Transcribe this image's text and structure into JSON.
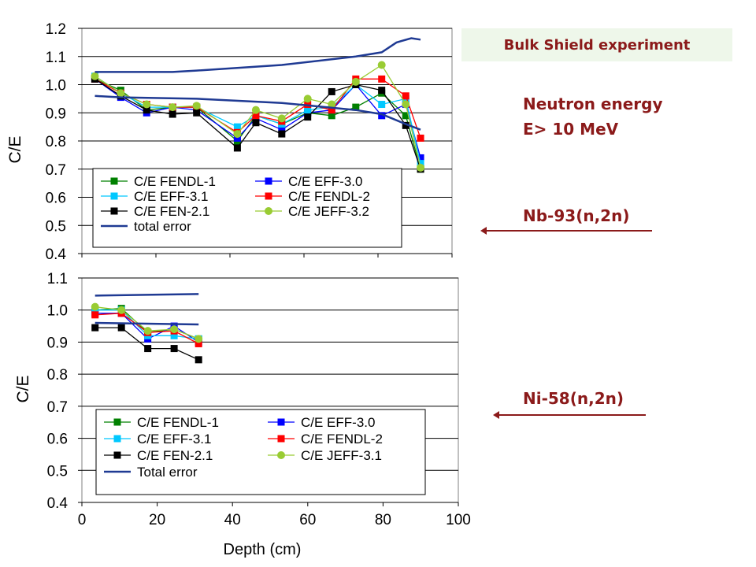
{
  "banner": "Bulk Shield experiment",
  "energy_note": [
    "Neutron energy",
    "E> 10 MeV"
  ],
  "reaction_labels": [
    "Nb-93(n,2n)",
    "Ni-58(n,2n)"
  ],
  "colors": {
    "annotation": "#8b1a1a",
    "banner_bg": "#eef7ea"
  },
  "chart_data": [
    {
      "type": "line",
      "title": "",
      "xlabel": "",
      "ylabel": "C/E",
      "xlim": [
        0,
        100
      ],
      "ylim": [
        0.4,
        1.2
      ],
      "yticks": [
        "0.4",
        "0.5",
        "0.6",
        "0.7",
        "0.8",
        "0.9",
        "1.0",
        "1.1",
        "1.2"
      ],
      "grid": "horizontal",
      "legend": "bottom-left",
      "legend_columns": 2,
      "series": [
        {
          "name": "C/E FENDL-1",
          "color": "#008000",
          "marker": "square",
          "x": [
            3.5,
            10.5,
            17.5,
            24.5,
            31,
            42,
            47,
            54,
            61,
            67.5,
            74,
            81,
            87.5,
            91.5
          ],
          "y": [
            1.02,
            0.98,
            0.91,
            0.92,
            0.92,
            0.8,
            0.89,
            0.86,
            0.9,
            0.89,
            0.92,
            0.97,
            0.89,
            0.7
          ]
        },
        {
          "name": "C/E EFF-3.0",
          "color": "#0000ff",
          "marker": "square",
          "x": [
            3.5,
            10.5,
            17.5,
            24.5,
            31,
            42,
            47,
            54,
            61,
            67.5,
            74,
            81,
            87.5,
            91.5
          ],
          "y": [
            1.02,
            0.955,
            0.9,
            0.92,
            0.91,
            0.81,
            0.88,
            0.84,
            0.9,
            0.91,
            1.0,
            0.89,
            0.93,
            0.74
          ]
        },
        {
          "name": "C/E EFF-3.1",
          "color": "#00c8ff",
          "marker": "square",
          "x": [
            3.5,
            10.5,
            17.5,
            24.5,
            31,
            42,
            47,
            54,
            61,
            67.5,
            74,
            81,
            87.5,
            91.5
          ],
          "y": [
            1.03,
            0.97,
            0.92,
            0.92,
            0.92,
            0.85,
            0.89,
            0.86,
            0.91,
            0.92,
            1.0,
            0.93,
            0.95,
            0.72
          ]
        },
        {
          "name": "C/E FENDL-2",
          "color": "#ff0000",
          "marker": "square",
          "x": [
            3.5,
            10.5,
            17.5,
            24.5,
            31,
            42,
            47,
            54,
            61,
            67.5,
            74,
            81,
            87.5,
            91.5
          ],
          "y": [
            1.02,
            0.97,
            0.93,
            0.92,
            0.92,
            0.83,
            0.89,
            0.87,
            0.93,
            0.91,
            1.02,
            1.02,
            0.96,
            0.81
          ]
        },
        {
          "name": "C/E FEN-2.1",
          "color": "#000000",
          "marker": "square",
          "x": [
            3.5,
            10.5,
            17.5,
            24.5,
            31,
            42,
            47,
            54,
            61,
            67.5,
            74,
            81,
            87.5,
            91.5
          ],
          "y": [
            1.02,
            0.96,
            0.91,
            0.895,
            0.9,
            0.775,
            0.865,
            0.825,
            0.885,
            0.975,
            1.0,
            0.98,
            0.855,
            0.7
          ]
        },
        {
          "name": "C/E JEFF-3.2",
          "color": "#99cc33",
          "marker": "circle",
          "x": [
            3.5,
            10.5,
            17.5,
            24.5,
            31,
            42,
            47,
            54,
            61,
            67.5,
            74,
            81,
            87.5,
            91.5
          ],
          "y": [
            1.03,
            0.97,
            0.93,
            0.92,
            0.925,
            0.825,
            0.91,
            0.88,
            0.95,
            0.93,
            1.01,
            1.07,
            0.93,
            0.705
          ]
        },
        {
          "name": "total error",
          "color": "#1f3a93",
          "marker": "none",
          "width": 2.5,
          "x": [
            3.5,
            10.5,
            24.5,
            31,
            54,
            74,
            81,
            85,
            89,
            91.5
          ],
          "y": [
            1.045,
            1.045,
            1.045,
            1.05,
            1.07,
            1.1,
            1.115,
            1.15,
            1.165,
            1.16
          ]
        },
        {
          "name": "",
          "color": "#1f3a93",
          "marker": "none",
          "width": 2.5,
          "x": [
            3.5,
            10.5,
            31,
            54,
            74,
            81,
            87.5,
            91.5
          ],
          "y": [
            0.96,
            0.955,
            0.95,
            0.935,
            0.91,
            0.895,
            0.86,
            0.84
          ]
        }
      ]
    },
    {
      "type": "line",
      "title": "",
      "xlabel": "Depth (cm)",
      "ylabel": "C/E",
      "xlim": [
        0,
        100
      ],
      "ylim": [
        0.4,
        1.1
      ],
      "xticks": [
        "0",
        "20",
        "40",
        "60",
        "80",
        "100"
      ],
      "yticks": [
        "0.4",
        "0.5",
        "0.6",
        "0.7",
        "0.8",
        "0.9",
        "1.0",
        "1.1"
      ],
      "grid": "horizontal",
      "legend": "bottom-left",
      "legend_columns": 2,
      "series": [
        {
          "name": "C/E FENDL-1",
          "color": "#008000",
          "marker": "square",
          "x": [
            3.5,
            10.5,
            17.5,
            24.5,
            31
          ],
          "y": [
            1.0,
            1.005,
            0.93,
            0.94,
            0.91
          ]
        },
        {
          "name": "C/E EFF-3.0",
          "color": "#0000ff",
          "marker": "square",
          "x": [
            3.5,
            10.5,
            17.5,
            24.5,
            31
          ],
          "y": [
            0.99,
            0.99,
            0.91,
            0.95,
            0.9
          ]
        },
        {
          "name": "C/E EFF-3.1",
          "color": "#00c8ff",
          "marker": "square",
          "x": [
            3.5,
            10.5,
            17.5,
            24.5,
            31
          ],
          "y": [
            1.0,
            1.0,
            0.92,
            0.92,
            0.91
          ]
        },
        {
          "name": "C/E FENDL-2",
          "color": "#ff0000",
          "marker": "square",
          "x": [
            3.5,
            10.5,
            17.5,
            24.5,
            31
          ],
          "y": [
            0.985,
            0.99,
            0.93,
            0.935,
            0.895
          ]
        },
        {
          "name": "C/E FEN-2.1",
          "color": "#000000",
          "marker": "square",
          "x": [
            3.5,
            10.5,
            17.5,
            24.5,
            31
          ],
          "y": [
            0.945,
            0.945,
            0.88,
            0.88,
            0.845
          ]
        },
        {
          "name": "C/E JEFF-3.1",
          "color": "#99cc33",
          "marker": "circle",
          "x": [
            3.5,
            10.5,
            17.5,
            24.5,
            31
          ],
          "y": [
            1.01,
            1.0,
            0.935,
            0.94,
            0.91
          ]
        },
        {
          "name": "Total error",
          "color": "#1f3a93",
          "marker": "none",
          "width": 2.5,
          "x": [
            3.5,
            31
          ],
          "y": [
            1.045,
            1.05
          ]
        },
        {
          "name": "",
          "color": "#1f3a93",
          "marker": "none",
          "width": 2.5,
          "x": [
            3.5,
            31
          ],
          "y": [
            0.96,
            0.955
          ]
        }
      ]
    }
  ]
}
